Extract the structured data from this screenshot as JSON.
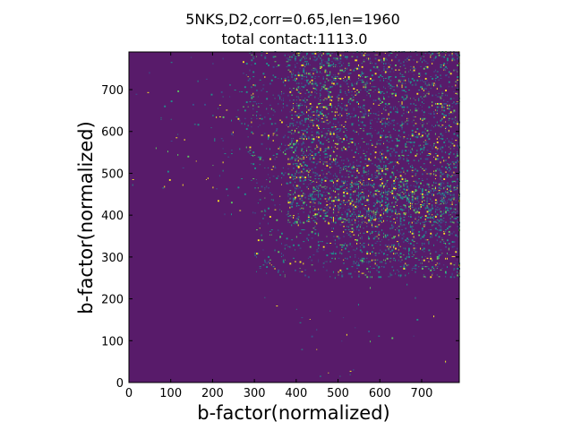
{
  "chart_data": {
    "type": "heatmap",
    "title": "5NKS,D2,corr=0.65,len=1960",
    "subtitle": "total contact:1113.0",
    "xlabel": "b-factor(normalized)",
    "ylabel": "b-factor(normalized)",
    "xlim": [
      0,
      790
    ],
    "ylim": [
      0,
      790
    ],
    "x_ticks": [
      0,
      100,
      200,
      300,
      400,
      500,
      600,
      700
    ],
    "y_ticks": [
      0,
      100,
      200,
      300,
      400,
      500,
      600,
      700
    ],
    "x_tick_labels": [
      "0",
      "100",
      "200",
      "300",
      "400",
      "500",
      "600",
      "700"
    ],
    "y_tick_labels": [
      "0",
      "100",
      "200",
      "300",
      "400",
      "500",
      "600",
      "700"
    ],
    "grid": false,
    "colormap": "viridis",
    "background_value": 0,
    "colors": {
      "background": "#581b6a",
      "low": "#3b528b",
      "mid": "#21918c",
      "high": "#5ec962",
      "peak": "#fde725"
    },
    "density_regions": [
      {
        "x_range": [
          280,
          500
        ],
        "y_range": [
          520,
          790
        ],
        "density": 0.1
      },
      {
        "x_range": [
          380,
          790
        ],
        "y_range": [
          380,
          790
        ],
        "density": 0.22
      },
      {
        "x_range": [
          300,
          790
        ],
        "y_range": [
          250,
          520
        ],
        "density": 0.08
      },
      {
        "x_range": [
          500,
          790
        ],
        "y_range": [
          250,
          480
        ],
        "density": 0.14
      },
      {
        "x_range": [
          200,
          300
        ],
        "y_range": [
          400,
          790
        ],
        "density": 0.03
      },
      {
        "x_range": [
          0,
          200
        ],
        "y_range": [
          450,
          790
        ],
        "density": 0.005
      },
      {
        "x_range": [
          300,
          790
        ],
        "y_range": [
          0,
          250
        ],
        "density": 0.004
      }
    ]
  }
}
